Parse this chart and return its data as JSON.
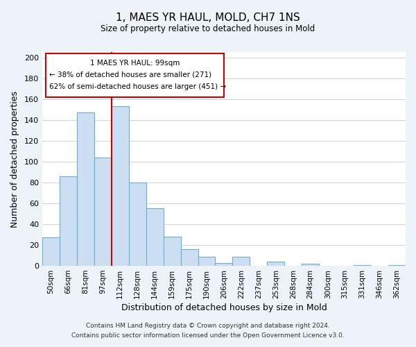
{
  "title": "1, MAES YR HAUL, MOLD, CH7 1NS",
  "subtitle": "Size of property relative to detached houses in Mold",
  "xlabel": "Distribution of detached houses by size in Mold",
  "ylabel": "Number of detached properties",
  "bar_labels": [
    "50sqm",
    "66sqm",
    "81sqm",
    "97sqm",
    "112sqm",
    "128sqm",
    "144sqm",
    "159sqm",
    "175sqm",
    "190sqm",
    "206sqm",
    "222sqm",
    "237sqm",
    "253sqm",
    "268sqm",
    "284sqm",
    "300sqm",
    "315sqm",
    "331sqm",
    "346sqm",
    "362sqm"
  ],
  "bar_values": [
    27,
    86,
    147,
    104,
    153,
    80,
    55,
    28,
    16,
    9,
    3,
    9,
    0,
    4,
    0,
    2,
    0,
    0,
    1,
    0,
    1
  ],
  "bar_color": "#ccdff2",
  "bar_edge_color": "#6aaed6",
  "vline_x": 3.5,
  "vline_color": "#cc0000",
  "ann_line1": "1 MAES YR HAUL: 99sqm",
  "ann_line2": "← 38% of detached houses are smaller (271)",
  "ann_line3": "62% of semi-detached houses are larger (451) →",
  "ylim": [
    0,
    205
  ],
  "yticks": [
    0,
    20,
    40,
    60,
    80,
    100,
    120,
    140,
    160,
    180,
    200
  ],
  "footer_line1": "Contains HM Land Registry data © Crown copyright and database right 2024.",
  "footer_line2": "Contains public sector information licensed under the Open Government Licence v3.0.",
  "bg_color": "#eef2f9",
  "plot_bg_color": "#ffffff",
  "grid_color": "#c8d4e8"
}
